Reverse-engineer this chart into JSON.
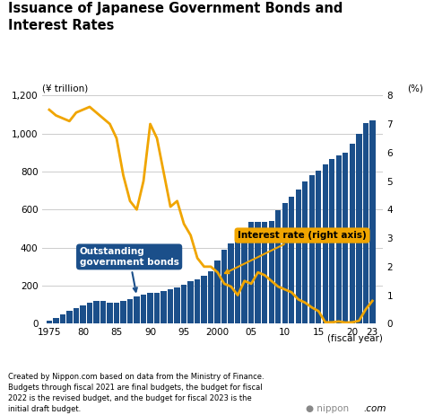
{
  "title": "Issuance of Japanese Government Bonds and\nInterest Rates",
  "ylabel_left": "(¥ trillion)",
  "ylabel_right": "(%)",
  "xlabel": "(fiscal year)",
  "background_color": "#ffffff",
  "bar_color": "#1b4f8a",
  "line_color": "#f0a500",
  "years": [
    1975,
    1976,
    1977,
    1978,
    1979,
    1980,
    1981,
    1982,
    1983,
    1984,
    1985,
    1986,
    1987,
    1988,
    1989,
    1990,
    1991,
    1992,
    1993,
    1994,
    1995,
    1996,
    1997,
    1998,
    1999,
    2000,
    2001,
    2002,
    2003,
    2004,
    2005,
    2006,
    2007,
    2008,
    2009,
    2010,
    2011,
    2012,
    2013,
    2014,
    2015,
    2016,
    2017,
    2018,
    2019,
    2020,
    2021,
    2022,
    2023
  ],
  "bonds": [
    16,
    32,
    50,
    67,
    82,
    98,
    112,
    118,
    122,
    110,
    112,
    118,
    130,
    142,
    154,
    160,
    163,
    172,
    180,
    192,
    207,
    222,
    234,
    254,
    277,
    330,
    390,
    420,
    457,
    499,
    533,
    534,
    536,
    541,
    597,
    636,
    668,
    705,
    750,
    780,
    805,
    838,
    866,
    883,
    900,
    948,
    1000,
    1056,
    1068
  ],
  "interest_rate": [
    7.5,
    7.3,
    7.2,
    7.1,
    7.4,
    7.5,
    7.6,
    7.4,
    7.2,
    7.0,
    6.5,
    5.2,
    4.3,
    4.0,
    5.0,
    7.0,
    6.5,
    5.3,
    4.1,
    4.3,
    3.5,
    3.1,
    2.3,
    2.0,
    2.0,
    1.8,
    1.4,
    1.3,
    1.0,
    1.5,
    1.4,
    1.8,
    1.7,
    1.5,
    1.3,
    1.2,
    1.1,
    0.85,
    0.74,
    0.57,
    0.44,
    0.05,
    0.05,
    0.08,
    0.04,
    0.05,
    0.1,
    0.5,
    0.8
  ],
  "ylim_left": [
    0,
    1200
  ],
  "ylim_right": [
    0,
    8
  ],
  "yticks_left": [
    0,
    200,
    400,
    600,
    800,
    1000,
    1200
  ],
  "yticks_right": [
    0,
    1,
    2,
    3,
    4,
    5,
    6,
    7,
    8
  ],
  "xticks": [
    1975,
    1980,
    1985,
    1990,
    1995,
    2000,
    2005,
    2010,
    2015,
    2020,
    2023
  ],
  "xtick_labels": [
    "1975",
    "80",
    "85",
    "90",
    "95",
    "2000",
    "05",
    "10",
    "15",
    "20",
    "23"
  ],
  "footnote_italic": "Nippon.com",
  "footnote_line1": "Created by ",
  "footnote_line2": " based on data from the Ministry of Finance.\nBudgets through fiscal 2021 are final budgets, the budget for fiscal\n2022 is the revised budget, and the budget for fiscal 2023 is the\ninitial draft budget.",
  "grid_color": "#cccccc",
  "bonds_box_color": "#1b4f8a",
  "rate_box_color": "#f0a500"
}
